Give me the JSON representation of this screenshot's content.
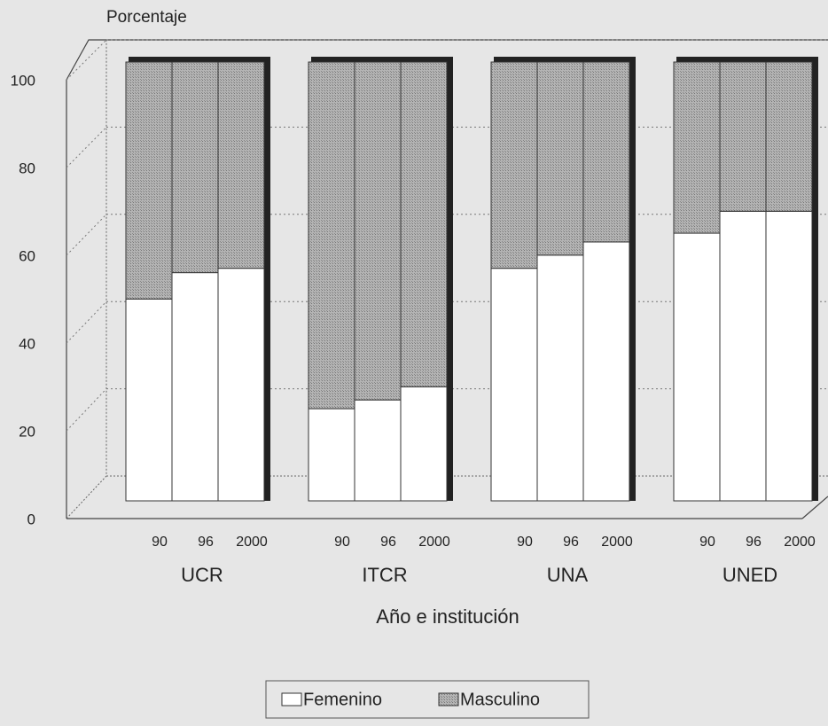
{
  "chart_data": {
    "type": "stacked_bar",
    "y_label": "Porcentaje",
    "x_label": "Año e institución",
    "groups": [
      "UCR",
      "ITCR",
      "UNA",
      "UNED"
    ],
    "categories": [
      "90",
      "96",
      "2000",
      "90",
      "96",
      "2000",
      "90",
      "96",
      "2000",
      "90",
      "96",
      "2000"
    ],
    "series": [
      {
        "name": "Femenino",
        "color": "#ffffff",
        "values": [
          46,
          52,
          53,
          21,
          23,
          26,
          53,
          56,
          59,
          61,
          66,
          66
        ]
      },
      {
        "name": "Masculino",
        "color": "#a9a9a9",
        "values": [
          54,
          48,
          47,
          79,
          77,
          74,
          47,
          44,
          41,
          39,
          34,
          34
        ]
      }
    ],
    "ylim": [
      0,
      100
    ],
    "yticks": [
      0,
      20,
      40,
      60,
      80,
      100
    ],
    "grid": true,
    "legend": "bottom"
  }
}
